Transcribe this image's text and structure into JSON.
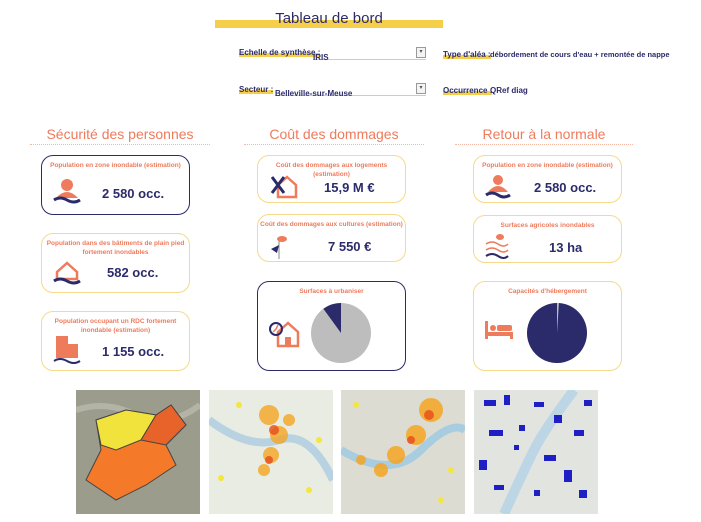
{
  "header": {
    "title": "Tableau de bord"
  },
  "filters": {
    "scale_label": "Echelle de synthèse :",
    "scale_value": "IRIS",
    "sector_label": "Secteur :",
    "sector_value": "Belleville-sur-Meuse",
    "hazard_label": "Type d'aléa :",
    "hazard_value": "débordement de cours d'eau + remontée de nappe",
    "occurrence_label": "Occurrence :",
    "occurrence_value": "QRef diag"
  },
  "sections": [
    {
      "title": "Sécurité des personnes",
      "cards": [
        {
          "title": "Population en zone inondable (estimation)",
          "value": "2 580 occ.",
          "icon": "person-flood-icon"
        },
        {
          "title": "Population dans des bâtiments de plain pied fortement inondables",
          "value": "582 occ.",
          "icon": "house-flood-icon"
        },
        {
          "title": "Population occupant un RDC fortement inondable (estimation)",
          "value": "1 155 occ.",
          "icon": "building-flood-icon"
        }
      ]
    },
    {
      "title": "Coût des dommages",
      "cards": [
        {
          "title": "Coût des dommages aux logements (estimation)",
          "value": "15,9 M €",
          "icon": "house-tools-icon"
        },
        {
          "title": "Coût des dommages aux cultures (estimation)",
          "value": "7 550 €",
          "icon": "crop-icon"
        },
        {
          "title": "Surfaces à urbaniser",
          "icon": "house-clock-icon",
          "pie": {
            "navy_percent": 10,
            "gray_percent": 90
          }
        }
      ]
    },
    {
      "title": "Retour à la normale",
      "cards": [
        {
          "title": "Population en zone inondable (estimation)",
          "value": "2 580 occ.",
          "icon": "person-flood-icon"
        },
        {
          "title": "Surfaces agricoles inondables",
          "value": "13 ha",
          "icon": "field-flood-icon"
        },
        {
          "title": "Capacités d'hébergement",
          "icon": "bed-icon",
          "pie": {
            "navy_percent": 99,
            "gray_percent": 1
          }
        }
      ]
    }
  ],
  "colors": {
    "navy": "#2b2b6b",
    "orange": "#ee7b5c",
    "yellow": "#f6cf4a",
    "gray": "#bdbdbd"
  },
  "maps": [
    "iris-map",
    "heat-map-1",
    "heat-map-2",
    "buildings-map"
  ]
}
